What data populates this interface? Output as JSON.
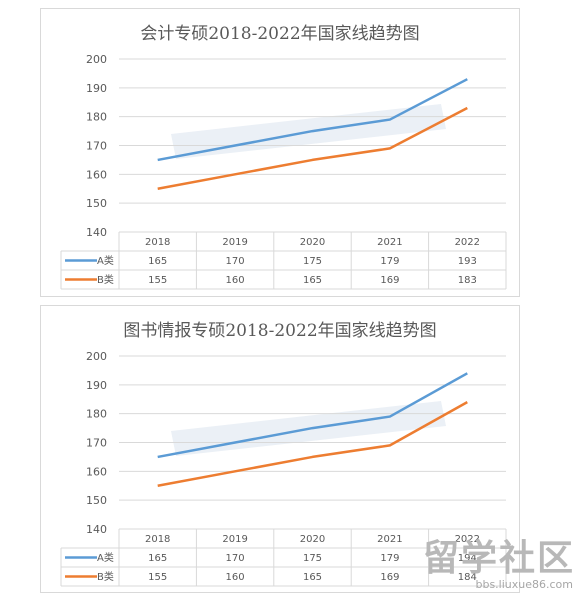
{
  "colors": {
    "series_a": "#5B9BD5",
    "series_b": "#ED7D31",
    "grid": "#d9d9d9",
    "text": "#595959",
    "watermark": "#c5d3e6"
  },
  "chart_data": [
    {
      "type": "line",
      "title": "会计专硕2018-2022年国家线趋势图",
      "xlabel": "",
      "ylabel": "",
      "categories": [
        "2018",
        "2019",
        "2020",
        "2021",
        "2022"
      ],
      "ylim": [
        140,
        200
      ],
      "yticks": [
        "140",
        "150",
        "160",
        "170",
        "180",
        "190",
        "200"
      ],
      "grid": true,
      "legend": "data-table",
      "series": [
        {
          "name": "A类",
          "values": [
            165,
            170,
            175,
            179,
            193
          ],
          "labels": [
            "165",
            "170",
            "175",
            "179",
            "193"
          ]
        },
        {
          "name": "B类",
          "values": [
            155,
            160,
            165,
            169,
            183
          ],
          "labels": [
            "155",
            "160",
            "165",
            "169",
            "183"
          ]
        }
      ]
    },
    {
      "type": "line",
      "title": "图书情报专硕2018-2022年国家线趋势图",
      "xlabel": "",
      "ylabel": "",
      "categories": [
        "2018",
        "2019",
        "2020",
        "2021",
        "2022"
      ],
      "ylim": [
        140,
        200
      ],
      "yticks": [
        "140",
        "150",
        "160",
        "170",
        "180",
        "190",
        "200"
      ],
      "grid": true,
      "legend": "data-table",
      "series": [
        {
          "name": "A类",
          "values": [
            165,
            170,
            175,
            179,
            194
          ],
          "labels": [
            "165",
            "170",
            "175",
            "179",
            "194"
          ]
        },
        {
          "name": "B类",
          "values": [
            155,
            160,
            165,
            169,
            184
          ],
          "labels": [
            "155",
            "160",
            "165",
            "169",
            "184"
          ]
        }
      ]
    }
  ],
  "watermark": {
    "brand": "留学社区",
    "url": "bbs.liuxue86.com"
  }
}
